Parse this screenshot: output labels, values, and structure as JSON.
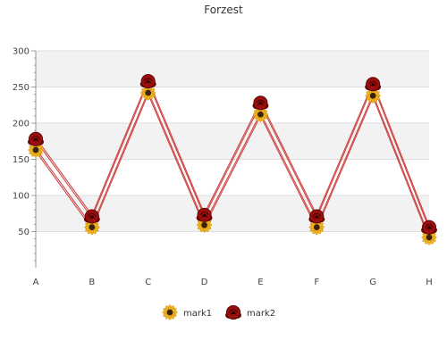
{
  "chart_data": {
    "type": "line",
    "title": "Forzest",
    "xlabel": "",
    "ylabel": "",
    "categories": [
      "A",
      "B",
      "C",
      "D",
      "E",
      "F",
      "G",
      "H"
    ],
    "ylim": [
      0,
      300
    ],
    "yticks": [
      50,
      100,
      150,
      200,
      250,
      300
    ],
    "grid": true,
    "legend_position": "bottom",
    "series": [
      {
        "name": "mark1",
        "values": [
          163,
          56,
          242,
          59,
          212,
          56,
          238,
          42
        ],
        "color": "#cc3b3b",
        "marker": "sunflower-icon"
      },
      {
        "name": "mark2",
        "values": [
          178,
          71,
          258,
          73,
          228,
          71,
          254,
          56
        ],
        "color": "#cc3b3b",
        "marker": "rose-icon"
      }
    ]
  }
}
